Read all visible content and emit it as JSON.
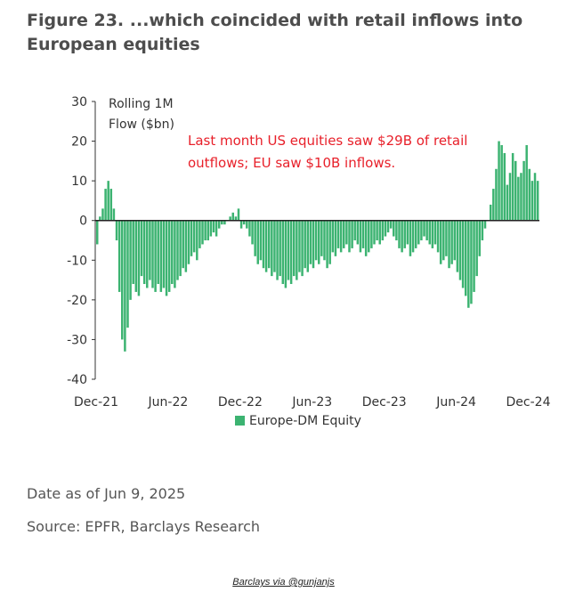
{
  "figure": {
    "title": "Figure 23. ...which coincided with retail inflows into European equities"
  },
  "chart_data": {
    "type": "bar",
    "ylabel_line1": "Rolling 1M",
    "ylabel_line2": "Flow ($bn)",
    "ylim": [
      -40,
      30
    ],
    "yticks": [
      30,
      20,
      10,
      0,
      -10,
      -20,
      -30,
      -40
    ],
    "xticks": [
      {
        "label": "Dec-21",
        "index": 0
      },
      {
        "label": "Jun-22",
        "index": 26
      },
      {
        "label": "Dec-22",
        "index": 52
      },
      {
        "label": "Jun-23",
        "index": 78
      },
      {
        "label": "Dec-23",
        "index": 104
      },
      {
        "label": "Jun-24",
        "index": 130
      },
      {
        "label": "Dec-24",
        "index": 156
      }
    ],
    "annotation_line1": "Last month US equities saw $29B of retail",
    "annotation_line2": "outflows; EU saw $10B inflows.",
    "series": [
      {
        "name": "Europe-DM Equity",
        "color": "#3cb371",
        "note": "weekly observations",
        "values": [
          -6,
          1,
          3,
          8,
          10,
          8,
          3,
          -5,
          -18,
          -30,
          -33,
          -27,
          -20,
          -16,
          -18,
          -19,
          -14,
          -16,
          -17,
          -15,
          -17,
          -18,
          -16,
          -18,
          -17,
          -19,
          -18,
          -16,
          -17,
          -15,
          -14,
          -12,
          -13,
          -11,
          -9,
          -8,
          -10,
          -7,
          -6,
          -5,
          -5,
          -4,
          -3,
          -4,
          -2,
          -1,
          -1,
          0,
          1,
          2,
          1,
          3,
          -2,
          -1,
          -2,
          -4,
          -6,
          -9,
          -11,
          -10,
          -12,
          -13,
          -12,
          -14,
          -13,
          -15,
          -14,
          -16,
          -17,
          -15,
          -16,
          -14,
          -15,
          -13,
          -14,
          -12,
          -13,
          -11,
          -12,
          -10,
          -11,
          -9,
          -10,
          -12,
          -11,
          -8,
          -9,
          -7,
          -8,
          -7,
          -6,
          -8,
          -7,
          -5,
          -6,
          -8,
          -7,
          -9,
          -8,
          -7,
          -6,
          -5,
          -6,
          -5,
          -4,
          -3,
          -2,
          -4,
          -5,
          -7,
          -8,
          -7,
          -6,
          -9,
          -8,
          -7,
          -6,
          -5,
          -4,
          -5,
          -6,
          -7,
          -6,
          -8,
          -11,
          -10,
          -9,
          -12,
          -11,
          -10,
          -13,
          -15,
          -17,
          -19,
          -22,
          -21,
          -18,
          -14,
          -9,
          -5,
          -2,
          0,
          4,
          8,
          13,
          20,
          19,
          17,
          9,
          12,
          17,
          15,
          11,
          12,
          15,
          19,
          13,
          10,
          12,
          10
        ]
      }
    ]
  },
  "footer": {
    "date_note": "Date as of Jun 9, 2025",
    "source": "Source: EPFR, Barclays Research",
    "credit": "Barclays via @gunjanjs"
  }
}
